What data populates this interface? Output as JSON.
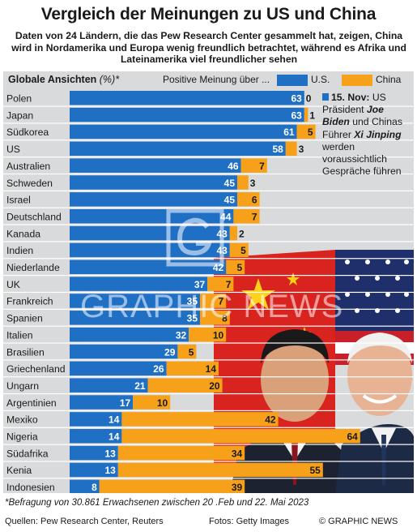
{
  "title": "Vergleich der Meinungen zu US und China",
  "subtitle": "Daten von 24 Ländern, die das Pew Research Center gesammelt hat, zeigen, China wird in Nordamerika und Europa wenig freundlich betrachtet, während es Afrika und Lateinamerika viel freundlicher sehen",
  "legend": {
    "heading": "Globale Ansichten",
    "unit": "(%)*",
    "positive_label": "Positive Meinung über ...",
    "us_label": "U.S.",
    "china_label": "China"
  },
  "note": {
    "date": "15. Nov:",
    "text_1": "US Präsident",
    "biden": "Joe Biden",
    "text_2": "und Chinas Führer",
    "xi": "Xi Jinping",
    "text_3": "werden voraussichtlich Gespräche führen"
  },
  "watermark": "GRAPHIC NEWS",
  "footnote": "*Befragung von 30.861 Erwachsenen zwischen 20 .Feb und 22. Mai  2023",
  "sources": "Quellen: Pew Research Center, Reuters",
  "credits": "Fotos: Getty Images",
  "brand": "© GRAPHIC NEWS",
  "colors": {
    "us": "#1f6fc5",
    "china": "#f7a11a",
    "background": "#d9dadb"
  },
  "chart_data": {
    "type": "bar",
    "stacked": true,
    "orientation": "horizontal",
    "categories": [
      "Polen",
      "Japan",
      "Südkorea",
      "US",
      "Australien",
      "Schweden",
      "Israel",
      "Deutschland",
      "Kanada",
      "Indien",
      "Niederlande",
      "UK",
      "Frankreich",
      "Spanien",
      "Italien",
      "Brasilien",
      "Griechenland",
      "Ungarn",
      "Argentinien",
      "Mexiko",
      "Nigeria",
      "Südafrika",
      "Kenia",
      "Indonesien"
    ],
    "series": [
      {
        "name": "U.S.",
        "values": [
          63,
          63,
          61,
          58,
          46,
          45,
          45,
          44,
          43,
          43,
          42,
          37,
          35,
          35,
          32,
          29,
          26,
          21,
          17,
          14,
          14,
          13,
          13,
          8
        ]
      },
      {
        "name": "China",
        "values": [
          0,
          1,
          5,
          3,
          7,
          3,
          6,
          7,
          2,
          5,
          5,
          7,
          7,
          8,
          10,
          5,
          14,
          20,
          10,
          42,
          64,
          34,
          55,
          39
        ]
      }
    ]
  }
}
